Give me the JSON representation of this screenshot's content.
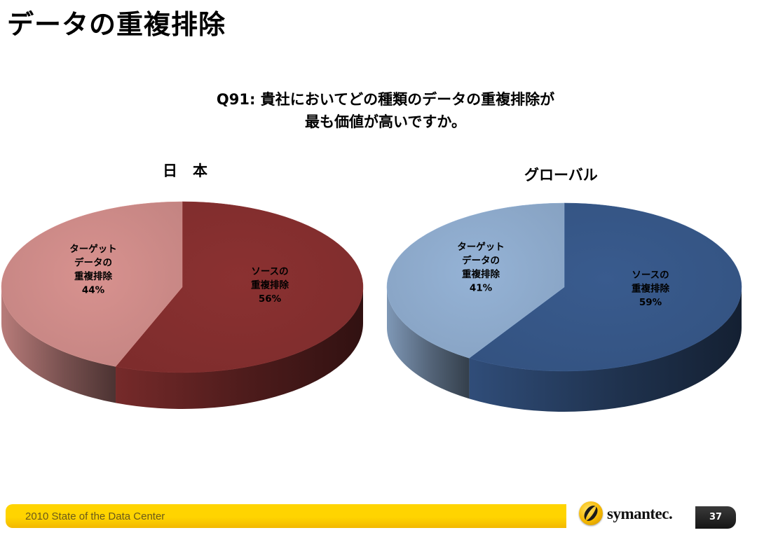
{
  "slide": {
    "title": "データの重複排除",
    "question_line1": "Q91: 貴社においてどの種類のデータの重複排除が",
    "question_line2": "最も価値が高いですか。"
  },
  "footer": {
    "text": "2010 State of the Data Center",
    "logo": "symantec.",
    "page_number": "37"
  },
  "chart_data": [
    {
      "type": "pie",
      "title": "日本",
      "slices": [
        {
          "label": [
            "ソースの",
            "重複排除"
          ],
          "value": 56,
          "display": "56%",
          "color": "#8b3131"
        },
        {
          "label": [
            "ターゲット",
            "データの",
            "重複排除"
          ],
          "value": 44,
          "display": "44%",
          "color": "#d8928f"
        }
      ]
    },
    {
      "type": "pie",
      "title": "グローバル",
      "slices": [
        {
          "label": [
            "ソースの",
            "重複排除"
          ],
          "value": 59,
          "display": "59%",
          "color": "#395b8e"
        },
        {
          "label": [
            "ターゲット",
            "データの",
            "重複排除"
          ],
          "value": 41,
          "display": "41%",
          "color": "#95b3d6"
        }
      ]
    }
  ]
}
